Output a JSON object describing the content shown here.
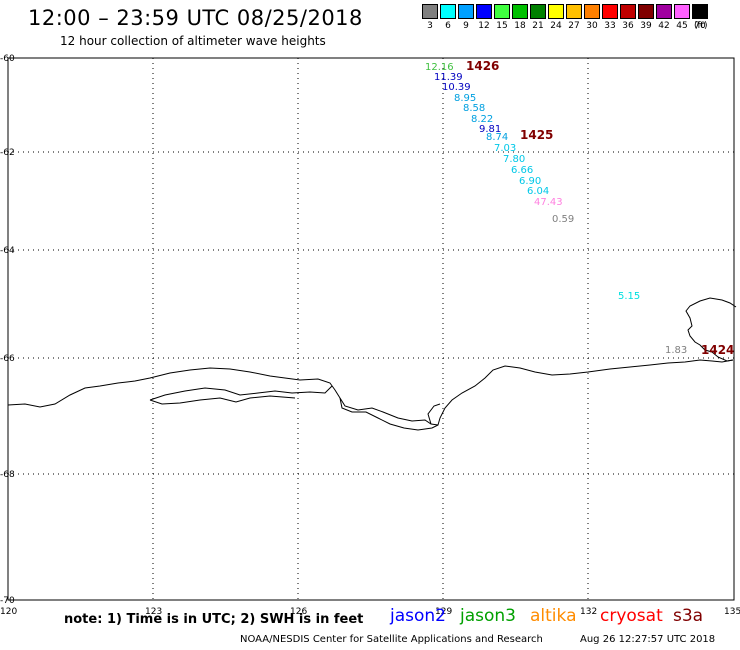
{
  "header": {
    "title": "12:00 – 23:59 UTC 08/25/2018",
    "subtitle": "12 hour collection of altimeter wave heights"
  },
  "legend": {
    "levels": [
      {
        "label": "3",
        "color": "#808080"
      },
      {
        "label": "6",
        "color": "#00ffff"
      },
      {
        "label": "9",
        "color": "#00a0ff"
      },
      {
        "label": "12",
        "color": "#0000ff"
      },
      {
        "label": "15",
        "color": "#40ff40"
      },
      {
        "label": "18",
        "color": "#00c000"
      },
      {
        "label": "21",
        "color": "#008000"
      },
      {
        "label": "24",
        "color": "#ffff00"
      },
      {
        "label": "27",
        "color": "#ffc000"
      },
      {
        "label": "30",
        "color": "#ff8000"
      },
      {
        "label": "33",
        "color": "#ff0000"
      },
      {
        "label": "36",
        "color": "#c00000"
      },
      {
        "label": "39",
        "color": "#800000"
      },
      {
        "label": "42",
        "color": "#a000a0"
      },
      {
        "label": "45",
        "color": "#ff60ff"
      },
      {
        "label": "70",
        "color": "#000000"
      }
    ],
    "unit": "(ft)"
  },
  "map": {
    "lon_range": [
      120,
      135
    ],
    "lat_range": [
      -70,
      -60
    ],
    "lon_ticks": [
      "120",
      "123",
      "126",
      "129",
      "132",
      "135"
    ],
    "lat_ticks": [
      "-60",
      "-62",
      "-64",
      "-66",
      "-68",
      "-70"
    ],
    "grid": "dotted",
    "observations": [
      {
        "text": "12.16",
        "color": "#40c040"
      },
      {
        "text": "11.39",
        "color": "#0000c0"
      },
      {
        "text": "10.39",
        "color": "#0000c0"
      },
      {
        "text": "8.95",
        "color": "#00a0e0"
      },
      {
        "text": "8.58",
        "color": "#00a0e0"
      },
      {
        "text": "8.22",
        "color": "#00a0e0"
      },
      {
        "text": "9.81",
        "color": "#0000c0"
      },
      {
        "text": "8.74",
        "color": "#00a0e0"
      },
      {
        "text": "7.03",
        "color": "#00c8e8"
      },
      {
        "text": "7.80",
        "color": "#00c8e8"
      },
      {
        "text": "6.66",
        "color": "#00c8e8"
      },
      {
        "text": "6.90",
        "color": "#00c8e8"
      },
      {
        "text": "6.04",
        "color": "#00c8e8"
      },
      {
        "text": "47.43",
        "color": "#ff80e0"
      },
      {
        "text": "0.59",
        "color": "#808080"
      },
      {
        "text": "5.15",
        "color": "#00e0e0"
      },
      {
        "text": "1.83",
        "color": "#808080"
      }
    ],
    "pass_labels": [
      {
        "text": "1426",
        "color": "#800000"
      },
      {
        "text": "1425",
        "color": "#800000"
      },
      {
        "text": "1424",
        "color": "#800000"
      }
    ]
  },
  "footer": {
    "note": "note: 1) Time is in UTC; 2) SWH is in feet",
    "satellites": [
      {
        "name": "jason2",
        "color": "#0000ff"
      },
      {
        "name": "jason3",
        "color": "#00a000"
      },
      {
        "name": "altika",
        "color": "#ff8c00"
      },
      {
        "name": "cryosat",
        "color": "#ff0000"
      },
      {
        "name": "s3a",
        "color": "#800000"
      }
    ],
    "credit": "NOAA/NESDIS Center for Satellite Applications and Research",
    "timestamp": "Aug 26 12:27:57 UTC 2018"
  }
}
